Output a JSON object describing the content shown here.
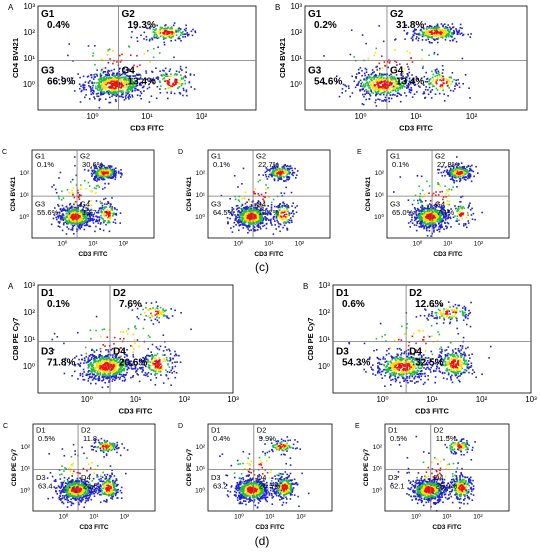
{
  "figure": {
    "caption_c": "(c)",
    "caption_d": "(d)"
  },
  "chart_data": [
    {
      "type": "scatter",
      "panel": "A",
      "title": "",
      "xlabel": "CD3 FITC",
      "ylabel": "CD4 BV421",
      "x_scale": "log",
      "y_scale": "log",
      "xlim": [
        0.1,
        1000
      ],
      "ylim": [
        0.1,
        1000
      ],
      "xticks": [
        "10⁰",
        "10¹",
        "10²"
      ],
      "yticks": [
        "10⁰",
        "10¹",
        "10²",
        "10³"
      ],
      "quadrants": [
        {
          "label": "G1",
          "value": "0.4%"
        },
        {
          "label": "G2",
          "value": "19.3%"
        },
        {
          "label": "G3",
          "value": "66.9%"
        },
        {
          "label": "G4",
          "value": "13.4%"
        }
      ],
      "gate": {
        "x": 3,
        "y": 8
      }
    },
    {
      "type": "scatter",
      "panel": "B",
      "title": "",
      "xlabel": "CD3 FITC",
      "ylabel": "CD4 BV421",
      "x_scale": "log",
      "y_scale": "log",
      "xlim": [
        0.1,
        1000
      ],
      "ylim": [
        0.1,
        1000
      ],
      "xticks": [
        "10⁰",
        "10¹",
        "10²"
      ],
      "yticks": [
        "10⁰",
        "10¹",
        "10²",
        "10³"
      ],
      "quadrants": [
        {
          "label": "G1",
          "value": "0.2%"
        },
        {
          "label": "G2",
          "value": "31.8%"
        },
        {
          "label": "G3",
          "value": "54.6%"
        },
        {
          "label": "G4",
          "value": "13.4%"
        }
      ],
      "gate": {
        "x": 3,
        "y": 8
      }
    },
    {
      "type": "scatter",
      "panel": "C",
      "title": "",
      "xlabel": "CD3 FITC",
      "ylabel": "CD4 BV421",
      "x_scale": "log",
      "y_scale": "log",
      "xlim": [
        0.1,
        1000
      ],
      "ylim": [
        0.1,
        1000
      ],
      "xticks": [
        "10⁰",
        "10¹",
        "10²"
      ],
      "yticks": [
        "10⁰",
        "10¹",
        "10²"
      ],
      "quadrants": [
        {
          "label": "G1",
          "value": "0.1%"
        },
        {
          "label": "G2",
          "value": "30.6%"
        },
        {
          "label": "G3",
          "value": "55.6%"
        },
        {
          "label": "G4",
          "value": "13.7"
        }
      ],
      "gate": {
        "x": 3,
        "y": 8
      }
    },
    {
      "type": "scatter",
      "panel": "D",
      "title": "",
      "xlabel": "CD3 FITC",
      "ylabel": "CD4 BV421",
      "x_scale": "log",
      "y_scale": "log",
      "xlim": [
        0.1,
        1000
      ],
      "ylim": [
        0.1,
        1000
      ],
      "xticks": [
        "10⁰",
        "10¹",
        "10²"
      ],
      "yticks": [
        "10⁰",
        "10¹",
        "10²"
      ],
      "quadrants": [
        {
          "label": "G1",
          "value": "0.1%"
        },
        {
          "label": "G2",
          "value": "22.7%"
        },
        {
          "label": "G3",
          "value": "64.5%"
        },
        {
          "label": "G4",
          "value": "12.7%"
        }
      ],
      "gate": {
        "x": 3,
        "y": 8
      }
    },
    {
      "type": "scatter",
      "panel": "E",
      "title": "",
      "xlabel": "CD3 FITC",
      "ylabel": "CD4 BV421",
      "x_scale": "log",
      "y_scale": "log",
      "xlim": [
        0.1,
        1000
      ],
      "ylim": [
        0.1,
        1000
      ],
      "xticks": [
        "10⁰",
        "10¹",
        "10²"
      ],
      "yticks": [
        "10⁰",
        "10¹",
        "10²"
      ],
      "quadrants": [
        {
          "label": "G1",
          "value": "0.1%"
        },
        {
          "label": "G2",
          "value": "27.8%"
        },
        {
          "label": "G3",
          "value": "65.0%"
        },
        {
          "label": "G4",
          "value": "7.1%"
        }
      ],
      "gate": {
        "x": 3,
        "y": 8
      }
    },
    {
      "type": "scatter",
      "panel": "A",
      "title": "",
      "xlabel": "CD3 FITC",
      "ylabel": "CD8 PE Cy7",
      "x_scale": "log",
      "y_scale": "log",
      "xlim": [
        0.1,
        1000
      ],
      "ylim": [
        0.1,
        1000
      ],
      "xticks": [
        "10⁰",
        "10¹",
        "10²",
        "10³"
      ],
      "yticks": [
        "10⁰",
        "10¹",
        "10²",
        "10³"
      ],
      "quadrants": [
        {
          "label": "D1",
          "value": "0.1%"
        },
        {
          "label": "D2",
          "value": "7.6%"
        },
        {
          "label": "D3",
          "value": "71.8%"
        },
        {
          "label": "D4",
          "value": "20.6%"
        }
      ],
      "gate": {
        "x": 3,
        "y": 8
      }
    },
    {
      "type": "scatter",
      "panel": "B",
      "title": "",
      "xlabel": "CD3 FITC",
      "ylabel": "CD8 PE Cy7",
      "x_scale": "log",
      "y_scale": "log",
      "xlim": [
        0.1,
        1000
      ],
      "ylim": [
        0.1,
        1000
      ],
      "xticks": [
        "10⁰",
        "10¹",
        "10²",
        "10³"
      ],
      "yticks": [
        "10⁰",
        "10¹",
        "10²",
        "10³"
      ],
      "quadrants": [
        {
          "label": "D1",
          "value": "0.6%"
        },
        {
          "label": "D2",
          "value": "12.6%"
        },
        {
          "label": "D3",
          "value": "54.3%"
        },
        {
          "label": "D4",
          "value": "32.5%"
        }
      ],
      "gate": {
        "x": 3,
        "y": 8
      }
    },
    {
      "type": "scatter",
      "panel": "C",
      "title": "",
      "xlabel": "CD3 FITC",
      "ylabel": "CD8 PE Cy7",
      "x_scale": "log",
      "y_scale": "log",
      "xlim": [
        0.1,
        1000
      ],
      "ylim": [
        0.1,
        1000
      ],
      "xticks": [
        "10⁰",
        "10¹",
        "10²"
      ],
      "yticks": [
        "10⁰",
        "10¹",
        "10²"
      ],
      "quadrants": [
        {
          "label": "D1",
          "value": "0.5%"
        },
        {
          "label": "D2",
          "value": "11.8"
        },
        {
          "label": "D3",
          "value": "63.4"
        },
        {
          "label": "D4",
          "value": "24.5"
        }
      ],
      "gate": {
        "x": 3,
        "y": 8
      }
    },
    {
      "type": "scatter",
      "panel": "D",
      "title": "",
      "xlabel": "CD3 FITC",
      "ylabel": "CD8 PE Cy7",
      "x_scale": "log",
      "y_scale": "log",
      "xlim": [
        0.1,
        1000
      ],
      "ylim": [
        0.1,
        1000
      ],
      "xticks": [
        "10⁰",
        "10¹",
        "10²"
      ],
      "yticks": [
        "10⁰",
        "10¹",
        "10²"
      ],
      "quadrants": [
        {
          "label": "D1",
          "value": "0.4%"
        },
        {
          "label": "D2",
          "value": "9.9%"
        },
        {
          "label": "D3",
          "value": "63.2"
        },
        {
          "label": "D4",
          "value": "26.5%"
        }
      ],
      "gate": {
        "x": 3,
        "y": 8
      }
    },
    {
      "type": "scatter",
      "panel": "E",
      "title": "",
      "xlabel": "CD3 FITC",
      "ylabel": "CD8 PE Cy7",
      "x_scale": "log",
      "y_scale": "log",
      "xlim": [
        0.1,
        1000
      ],
      "ylim": [
        0.1,
        1000
      ],
      "xticks": [
        "10⁰",
        "10¹",
        "10²"
      ],
      "yticks": [
        "10⁰",
        "10¹",
        "10²"
      ],
      "quadrants": [
        {
          "label": "D1",
          "value": "0.5%"
        },
        {
          "label": "D2",
          "value": "11.5%"
        },
        {
          "label": "D3",
          "value": "62.1"
        },
        {
          "label": "D4",
          "value": "25.9%"
        }
      ],
      "gate": {
        "x": 3,
        "y": 8
      }
    }
  ],
  "colors": {
    "low_density": "#2222cc",
    "mid_density": "#22bb44",
    "high_density": "#ffdd00",
    "peak_density": "#ee1111",
    "gate_line": "#777777",
    "axis": "#000000"
  }
}
